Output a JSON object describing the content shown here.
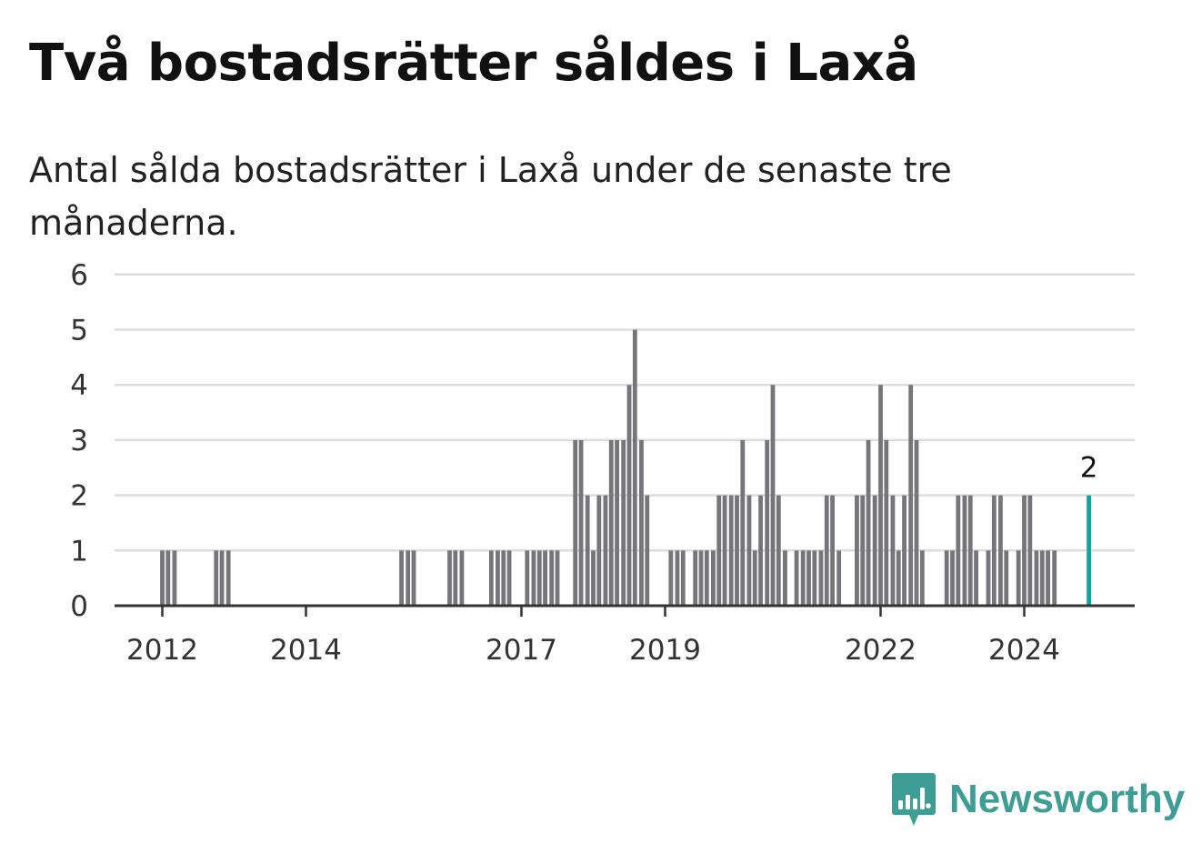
{
  "title": "Två bostadsrätter såldes i Laxå",
  "subtitle": "Antal sålda bostadsrätter i Laxå under de senaste tre månaderna.",
  "brand": {
    "name": "Newsworthy",
    "icon": "newsworthy-logo-icon",
    "color": "#3e9e96"
  },
  "colors": {
    "bar": "#75757a",
    "highlight": "#14a39a",
    "grid": "#dddddd",
    "axis": "#333333"
  },
  "chart_data": {
    "type": "bar",
    "title": "",
    "xlabel": "",
    "ylabel": "",
    "ylim": [
      0,
      6
    ],
    "yticks": [
      "0",
      "1",
      "2",
      "3",
      "4",
      "5",
      "6"
    ],
    "x_tick_labels": [
      {
        "label": "2012",
        "year": 2012.0
      },
      {
        "label": "2014",
        "year": 2014.0
      },
      {
        "label": "2017",
        "year": 2017.0
      },
      {
        "label": "2019",
        "year": 2019.0
      },
      {
        "label": "2022",
        "year": 2022.0
      },
      {
        "label": "2024",
        "year": 2024.0
      }
    ],
    "grid": true,
    "annotation": {
      "year": 2024.9,
      "value": 2,
      "label": "2",
      "color": "#14a39a"
    },
    "bars": [
      {
        "year": 2012.0,
        "value": 1
      },
      {
        "year": 2012.08,
        "value": 1
      },
      {
        "year": 2012.17,
        "value": 1
      },
      {
        "year": 2012.75,
        "value": 1
      },
      {
        "year": 2012.83,
        "value": 1
      },
      {
        "year": 2012.92,
        "value": 1
      },
      {
        "year": 2015.33,
        "value": 1
      },
      {
        "year": 2015.42,
        "value": 1
      },
      {
        "year": 2015.5,
        "value": 1
      },
      {
        "year": 2016.0,
        "value": 1
      },
      {
        "year": 2016.08,
        "value": 1
      },
      {
        "year": 2016.17,
        "value": 1
      },
      {
        "year": 2016.58,
        "value": 1
      },
      {
        "year": 2016.67,
        "value": 1
      },
      {
        "year": 2016.75,
        "value": 1
      },
      {
        "year": 2016.83,
        "value": 1
      },
      {
        "year": 2017.08,
        "value": 1
      },
      {
        "year": 2017.17,
        "value": 1
      },
      {
        "year": 2017.25,
        "value": 1
      },
      {
        "year": 2017.33,
        "value": 1
      },
      {
        "year": 2017.42,
        "value": 1
      },
      {
        "year": 2017.5,
        "value": 1
      },
      {
        "year": 2017.75,
        "value": 3
      },
      {
        "year": 2017.83,
        "value": 3
      },
      {
        "year": 2017.92,
        "value": 2
      },
      {
        "year": 2018.0,
        "value": 1
      },
      {
        "year": 2018.08,
        "value": 2
      },
      {
        "year": 2018.17,
        "value": 2
      },
      {
        "year": 2018.25,
        "value": 3
      },
      {
        "year": 2018.33,
        "value": 3
      },
      {
        "year": 2018.42,
        "value": 3
      },
      {
        "year": 2018.5,
        "value": 4
      },
      {
        "year": 2018.58,
        "value": 5
      },
      {
        "year": 2018.67,
        "value": 3
      },
      {
        "year": 2018.75,
        "value": 2
      },
      {
        "year": 2019.08,
        "value": 1
      },
      {
        "year": 2019.17,
        "value": 1
      },
      {
        "year": 2019.25,
        "value": 1
      },
      {
        "year": 2019.42,
        "value": 1
      },
      {
        "year": 2019.5,
        "value": 1
      },
      {
        "year": 2019.58,
        "value": 1
      },
      {
        "year": 2019.67,
        "value": 1
      },
      {
        "year": 2019.75,
        "value": 2
      },
      {
        "year": 2019.83,
        "value": 2
      },
      {
        "year": 2019.92,
        "value": 2
      },
      {
        "year": 2020.0,
        "value": 2
      },
      {
        "year": 2020.08,
        "value": 3
      },
      {
        "year": 2020.17,
        "value": 2
      },
      {
        "year": 2020.25,
        "value": 1
      },
      {
        "year": 2020.33,
        "value": 2
      },
      {
        "year": 2020.42,
        "value": 3
      },
      {
        "year": 2020.5,
        "value": 4
      },
      {
        "year": 2020.58,
        "value": 2
      },
      {
        "year": 2020.67,
        "value": 1
      },
      {
        "year": 2020.83,
        "value": 1
      },
      {
        "year": 2020.92,
        "value": 1
      },
      {
        "year": 2021.0,
        "value": 1
      },
      {
        "year": 2021.08,
        "value": 1
      },
      {
        "year": 2021.17,
        "value": 1
      },
      {
        "year": 2021.25,
        "value": 2
      },
      {
        "year": 2021.33,
        "value": 2
      },
      {
        "year": 2021.42,
        "value": 1
      },
      {
        "year": 2021.67,
        "value": 2
      },
      {
        "year": 2021.75,
        "value": 2
      },
      {
        "year": 2021.83,
        "value": 3
      },
      {
        "year": 2021.92,
        "value": 2
      },
      {
        "year": 2022.0,
        "value": 4
      },
      {
        "year": 2022.08,
        "value": 3
      },
      {
        "year": 2022.17,
        "value": 2
      },
      {
        "year": 2022.25,
        "value": 1
      },
      {
        "year": 2022.33,
        "value": 2
      },
      {
        "year": 2022.42,
        "value": 4
      },
      {
        "year": 2022.5,
        "value": 3
      },
      {
        "year": 2022.58,
        "value": 1
      },
      {
        "year": 2022.92,
        "value": 1
      },
      {
        "year": 2023.0,
        "value": 1
      },
      {
        "year": 2023.08,
        "value": 2
      },
      {
        "year": 2023.17,
        "value": 2
      },
      {
        "year": 2023.25,
        "value": 2
      },
      {
        "year": 2023.33,
        "value": 1
      },
      {
        "year": 2023.5,
        "value": 1
      },
      {
        "year": 2023.58,
        "value": 2
      },
      {
        "year": 2023.67,
        "value": 2
      },
      {
        "year": 2023.75,
        "value": 1
      },
      {
        "year": 2023.92,
        "value": 1
      },
      {
        "year": 2024.0,
        "value": 2
      },
      {
        "year": 2024.08,
        "value": 2
      },
      {
        "year": 2024.17,
        "value": 1
      },
      {
        "year": 2024.25,
        "value": 1
      },
      {
        "year": 2024.33,
        "value": 1
      },
      {
        "year": 2024.42,
        "value": 1
      },
      {
        "year": 2024.9,
        "value": 2,
        "highlight": true
      }
    ]
  }
}
